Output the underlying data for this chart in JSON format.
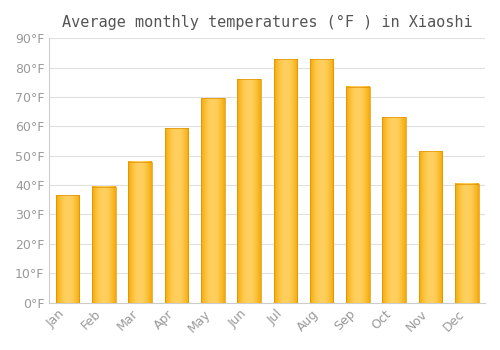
{
  "title": "Average monthly temperatures (°F ) in Xiaoshi",
  "months": [
    "Jan",
    "Feb",
    "Mar",
    "Apr",
    "May",
    "Jun",
    "Jul",
    "Aug",
    "Sep",
    "Oct",
    "Nov",
    "Dec"
  ],
  "temperatures": [
    36.5,
    39.5,
    48.0,
    59.5,
    69.5,
    76.0,
    83.0,
    83.0,
    73.5,
    63.0,
    51.5,
    40.5
  ],
  "bar_color_left": "#F5A800",
  "bar_color_mid": "#FFD060",
  "bar_color_right": "#F5A800",
  "background_color": "#FFFFFF",
  "grid_color": "#E0E0E0",
  "ylim": [
    0,
    90
  ],
  "yticks": [
    0,
    10,
    20,
    30,
    40,
    50,
    60,
    70,
    80,
    90
  ],
  "title_fontsize": 11,
  "tick_fontsize": 9,
  "tick_color": "#999999",
  "spine_color": "#CCCCCC"
}
